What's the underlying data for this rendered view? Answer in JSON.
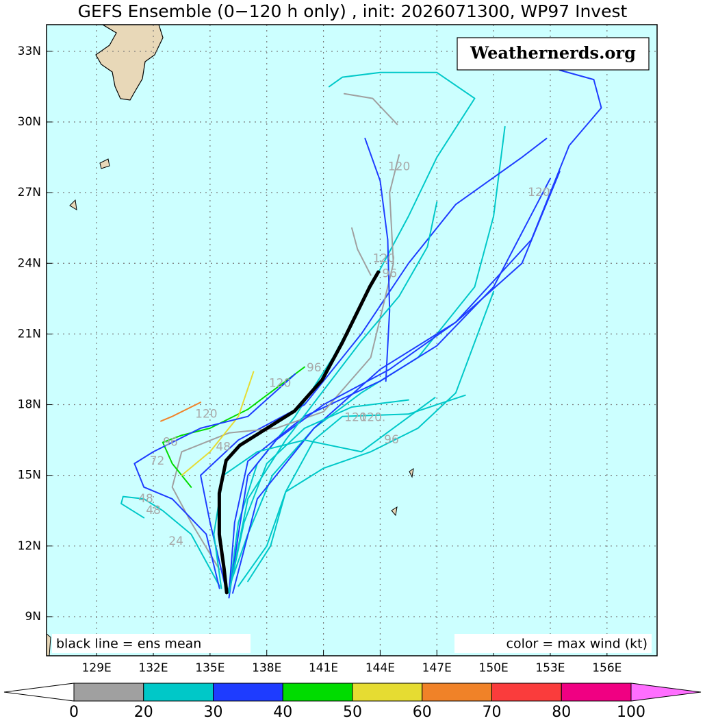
{
  "chart_data": {
    "type": "map",
    "title": "GEFS Ensemble (0−120 h only) , init: 2026071300, WP97 Invest",
    "watermark": "Weathernerds.org",
    "legend_left": "black line = ens mean",
    "legend_right": "color = max wind (kt)",
    "xlim": [
      126.35,
      158.65
    ],
    "ylim": [
      7.34,
      34.13
    ],
    "grid": true,
    "xticks": [
      {
        "value": 129,
        "label": "129E"
      },
      {
        "value": 132,
        "label": "132E"
      },
      {
        "value": 135,
        "label": "135E"
      },
      {
        "value": 138,
        "label": "138E"
      },
      {
        "value": 141,
        "label": "141E"
      },
      {
        "value": 144,
        "label": "144E"
      },
      {
        "value": 147,
        "label": "147E"
      },
      {
        "value": 150,
        "label": "150E"
      },
      {
        "value": 153,
        "label": "153E"
      },
      {
        "value": 156,
        "label": "156E"
      }
    ],
    "yticks": [
      {
        "value": 9,
        "label": "9N"
      },
      {
        "value": 12,
        "label": "12N"
      },
      {
        "value": 15,
        "label": "15N"
      },
      {
        "value": 18,
        "label": "18N"
      },
      {
        "value": 21,
        "label": "21N"
      },
      {
        "value": 24,
        "label": "24N"
      },
      {
        "value": 27,
        "label": "27N"
      },
      {
        "value": 30,
        "label": "30N"
      },
      {
        "value": 33,
        "label": "33N"
      }
    ],
    "series": [
      {
        "color": "#00c8c8",
        "x": [
          135.9,
          137,
          138.3,
          140.5,
          143,
          146,
          149,
          150,
          150.6
        ],
        "values": [
          10,
          12.5,
          15,
          17,
          18.5,
          20,
          23,
          26,
          29.8
        ]
      },
      {
        "color": "#00c8c8",
        "x": [
          136,
          136.5,
          137.5,
          139.5,
          141.5,
          143.5,
          145.5,
          147,
          149,
          147,
          144,
          142,
          141.3
        ],
        "values": [
          10,
          13,
          15.5,
          17.5,
          20,
          23,
          26,
          28.5,
          31,
          32.1,
          32.1,
          31.9,
          31.5
        ]
      },
      {
        "color": "#1e3cff",
        "x": [
          136,
          136.3,
          137,
          140,
          144,
          147,
          150,
          153
        ],
        "values": [
          10,
          13,
          15.6,
          17.5,
          19,
          20.5,
          23,
          27.6
        ]
      },
      {
        "color": "#1e3cff",
        "x": [
          135.8,
          135,
          134.5,
          136.5,
          140,
          143,
          145.5,
          148,
          151.5,
          152.8
        ],
        "values": [
          10.3,
          13,
          15,
          16.5,
          18,
          21,
          24,
          26.5,
          28.5,
          29.3
        ]
      },
      {
        "color": "#1e3cff",
        "x": [
          136.2,
          137.5,
          140.5,
          144,
          148,
          152,
          154,
          155.7,
          155.3,
          153.5
        ],
        "values": [
          10,
          14,
          17,
          19.5,
          21.5,
          25,
          29,
          30.6,
          31.8,
          32.2
        ]
      },
      {
        "color": "#a0a0a0",
        "x": [
          135.5,
          134,
          133,
          133.5,
          136,
          138.5,
          141,
          143.5,
          144.7,
          144.5,
          145
        ],
        "values": [
          11,
          13,
          14.5,
          16,
          16.8,
          17,
          17.7,
          20,
          24,
          27,
          28.6
        ]
      },
      {
        "color": "#a0a0a0",
        "x": [
          144.9,
          143.6,
          142.1
        ],
        "values": [
          29.9,
          31,
          31.2
        ]
      },
      {
        "color": "#a0a0a0",
        "x": [
          143.5,
          142.8,
          142.5
        ],
        "values": [
          23.5,
          24.6,
          25.5
        ]
      },
      {
        "color": "#00dc00",
        "x": [
          134,
          133,
          132.5,
          133.5,
          135,
          137,
          139,
          140
        ],
        "values": [
          14.5,
          15.5,
          16.4,
          16.7,
          17,
          17.8,
          19,
          19.6
        ]
      },
      {
        "color": "#e6dc32",
        "x": [
          133.5,
          135,
          136.5,
          137.3
        ],
        "values": [
          15,
          16,
          17.5,
          19.4
        ]
      },
      {
        "color": "#f08228",
        "x": [
          132.4,
          133,
          134.5
        ],
        "values": [
          17.3,
          17.5,
          18.1
        ]
      },
      {
        "color": "#00c8c8",
        "x": [
          135.5,
          134,
          132.5,
          131.5,
          130.4,
          130.3,
          131.5
        ],
        "values": [
          10.3,
          12.5,
          13.5,
          14,
          14.1,
          13.8,
          13.2
        ]
      },
      {
        "color": "#00c8c8",
        "x": [
          136.5,
          138,
          139,
          141,
          143.5,
          146,
          148,
          150
        ],
        "values": [
          10.3,
          12,
          14.3,
          15.3,
          16,
          17,
          18.5,
          22.8
        ]
      },
      {
        "color": "#1e3cff",
        "x": [
          136,
          136.5,
          137,
          138.5,
          141,
          144.5,
          148,
          151.5,
          153.5
        ],
        "values": [
          9.8,
          12.5,
          15,
          16.5,
          18,
          19.5,
          21.5,
          24,
          27.9
        ]
      },
      {
        "color": "#00c8c8",
        "x": [
          137,
          138.2,
          139,
          140.5,
          142,
          145.5,
          148.5
        ],
        "values": [
          10.5,
          12,
          14.3,
          16.5,
          17.5,
          17.6,
          18.4
        ]
      },
      {
        "color": "#1e3cff",
        "x": [
          143.2,
          144,
          144.4,
          144.5,
          144.3
        ],
        "values": [
          29.3,
          27.5,
          25,
          22,
          19
        ]
      },
      {
        "color": "#00c8c8",
        "x": [
          136,
          137,
          139,
          141,
          143,
          145,
          146.5,
          147
        ],
        "values": [
          10,
          14,
          16.5,
          18.6,
          20.7,
          22.6,
          24.7,
          26.6
        ]
      },
      {
        "color": "#00c8c8",
        "x": [
          136,
          136.8,
          138,
          140,
          142.5,
          145.5
        ],
        "values": [
          10,
          13,
          15.5,
          17,
          17.9,
          18.2
        ]
      },
      {
        "color": "#00c8c8",
        "x": [
          135.6,
          135.2,
          135.7,
          137.5,
          140,
          143,
          146.9
        ],
        "values": [
          10.2,
          12.5,
          15,
          16,
          16.5,
          16,
          18.3
        ]
      },
      {
        "color": "#1e3cff",
        "x": [
          135.5,
          134.8,
          133,
          131.5,
          131,
          132,
          134.5,
          137,
          139.5
        ],
        "values": [
          10.2,
          12.5,
          14,
          14.5,
          15.5,
          16,
          17,
          17.5,
          19.3
        ]
      }
    ],
    "mean": {
      "color": "#000000",
      "x": [
        135.88,
        135.74,
        135.49,
        135.49,
        135.85,
        136.57,
        138.02,
        139.47,
        140.92,
        142,
        143.46,
        143.9
      ],
      "values": [
        10.02,
        11.04,
        12.49,
        14.24,
        15.63,
        16.27,
        17,
        17.73,
        19.04,
        20.64,
        23.02,
        23.63
      ]
    },
    "annotations": [
      {
        "text": "120",
        "x": 145.0,
        "y": 28.1
      },
      {
        "text": "120",
        "x": 152.4,
        "y": 27.0
      },
      {
        "text": "120",
        "x": 144.2,
        "y": 24.2
      },
      {
        "text": "96",
        "x": 144.5,
        "y": 23.55
      },
      {
        "text": "96",
        "x": 140.5,
        "y": 19.56
      },
      {
        "text": "120",
        "x": 138.7,
        "y": 18.9
      },
      {
        "text": "120",
        "x": 134.8,
        "y": 17.6
      },
      {
        "text": "96",
        "x": 132.9,
        "y": 16.4
      },
      {
        "text": "72",
        "x": 132.2,
        "y": 15.6
      },
      {
        "text": "48",
        "x": 131.6,
        "y": 14.0
      },
      {
        "text": "48",
        "x": 132.0,
        "y": 13.5
      },
      {
        "text": "24",
        "x": 133.2,
        "y": 12.2
      },
      {
        "text": "120",
        "x": 142.7,
        "y": 17.45
      },
      {
        "text": "120.",
        "x": 143.6,
        "y": 17.45
      },
      {
        "text": "96",
        "x": 144.6,
        "y": 16.5
      },
      {
        "text": "48",
        "x": 135.7,
        "y": 16.2
      }
    ],
    "colorbar": {
      "ticks": [
        0,
        20,
        30,
        40,
        50,
        60,
        70,
        80,
        100
      ],
      "colors": [
        "#a0a0a0",
        "#00c8c8",
        "#1e3cff",
        "#00dc00",
        "#e6dc32",
        "#f08228",
        "#fa3c3c",
        "#f00082"
      ],
      "under_color": "#ffffff",
      "over_color": "#ff6eff"
    }
  }
}
